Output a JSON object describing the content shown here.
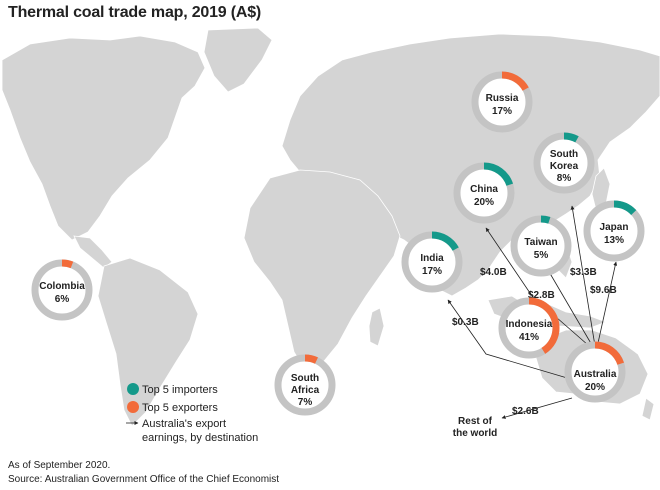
{
  "title": "Thermal coal trade map, 2019 (A$)",
  "footer": {
    "as_of": "As of September 2020.",
    "source": "Source: Australian Government Office of the Chief Economist"
  },
  "colors": {
    "importer": "#14998a",
    "exporter": "#f26b3a",
    "ring": "#c4c4c4",
    "land": "#d4d4d4",
    "ocean": "#ffffff"
  },
  "legend": {
    "importers": "Top 5 importers",
    "exporters": "Top 5 exporters",
    "earnings_line1": "Australia's export",
    "earnings_line2": "earnings, by destination"
  },
  "countries": [
    {
      "name": "Russia",
      "share_label": "17%",
      "share": 17,
      "role": "exporter"
    },
    {
      "name_line1": "South",
      "name_line2": "Korea",
      "share_label": "8%",
      "share": 8,
      "role": "importer"
    },
    {
      "name": "China",
      "share_label": "20%",
      "share": 20,
      "role": "importer"
    },
    {
      "name": "Taiwan",
      "share_label": "5%",
      "share": 5,
      "role": "importer"
    },
    {
      "name": "Japan",
      "share_label": "13%",
      "share": 13,
      "role": "importer"
    },
    {
      "name": "India",
      "share_label": "17%",
      "share": 17,
      "role": "importer"
    },
    {
      "name": "Indonesia",
      "share_label": "41%",
      "share": 41,
      "role": "exporter"
    },
    {
      "name": "Australia",
      "share_label": "20%",
      "share": 20,
      "role": "exporter"
    },
    {
      "name": "Colombia",
      "share_label": "6%",
      "share": 6,
      "role": "exporter"
    },
    {
      "name_line1": "South",
      "name_line2": "Africa",
      "share_label": "7%",
      "share": 7,
      "role": "exporter"
    }
  ],
  "flows": [
    {
      "destination": "China",
      "value": "$4.0B"
    },
    {
      "destination": "Taiwan",
      "value": "$2.8B"
    },
    {
      "destination": "South Korea",
      "value": "$3.3B"
    },
    {
      "destination": "Japan",
      "value": "$9.6B"
    },
    {
      "destination": "India",
      "value": "$0.3B"
    },
    {
      "destination": "Rest of the world",
      "value": "$2.6B"
    }
  ],
  "rest_of_world": {
    "line1": "Rest of",
    "line2": "the world"
  }
}
